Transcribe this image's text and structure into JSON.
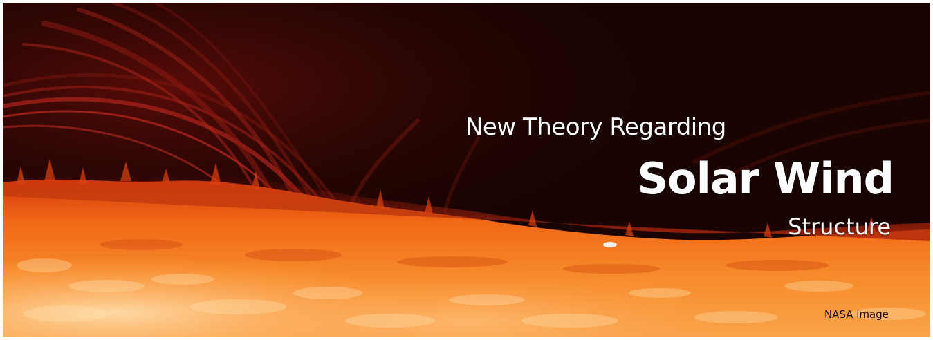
{
  "banner": {
    "headline_line1": "New Theory Regarding",
    "headline_line2": "Solar Wind",
    "headline_line3": "Structure",
    "credit": "NASA image"
  },
  "colors": {
    "space": "#1a0402",
    "corona_red": "#8a1a10",
    "surface_orange": "#f26a12",
    "surface_bright": "#ffd9a0",
    "headline_text": "#ffffff",
    "credit_text": "#1a0a00"
  }
}
